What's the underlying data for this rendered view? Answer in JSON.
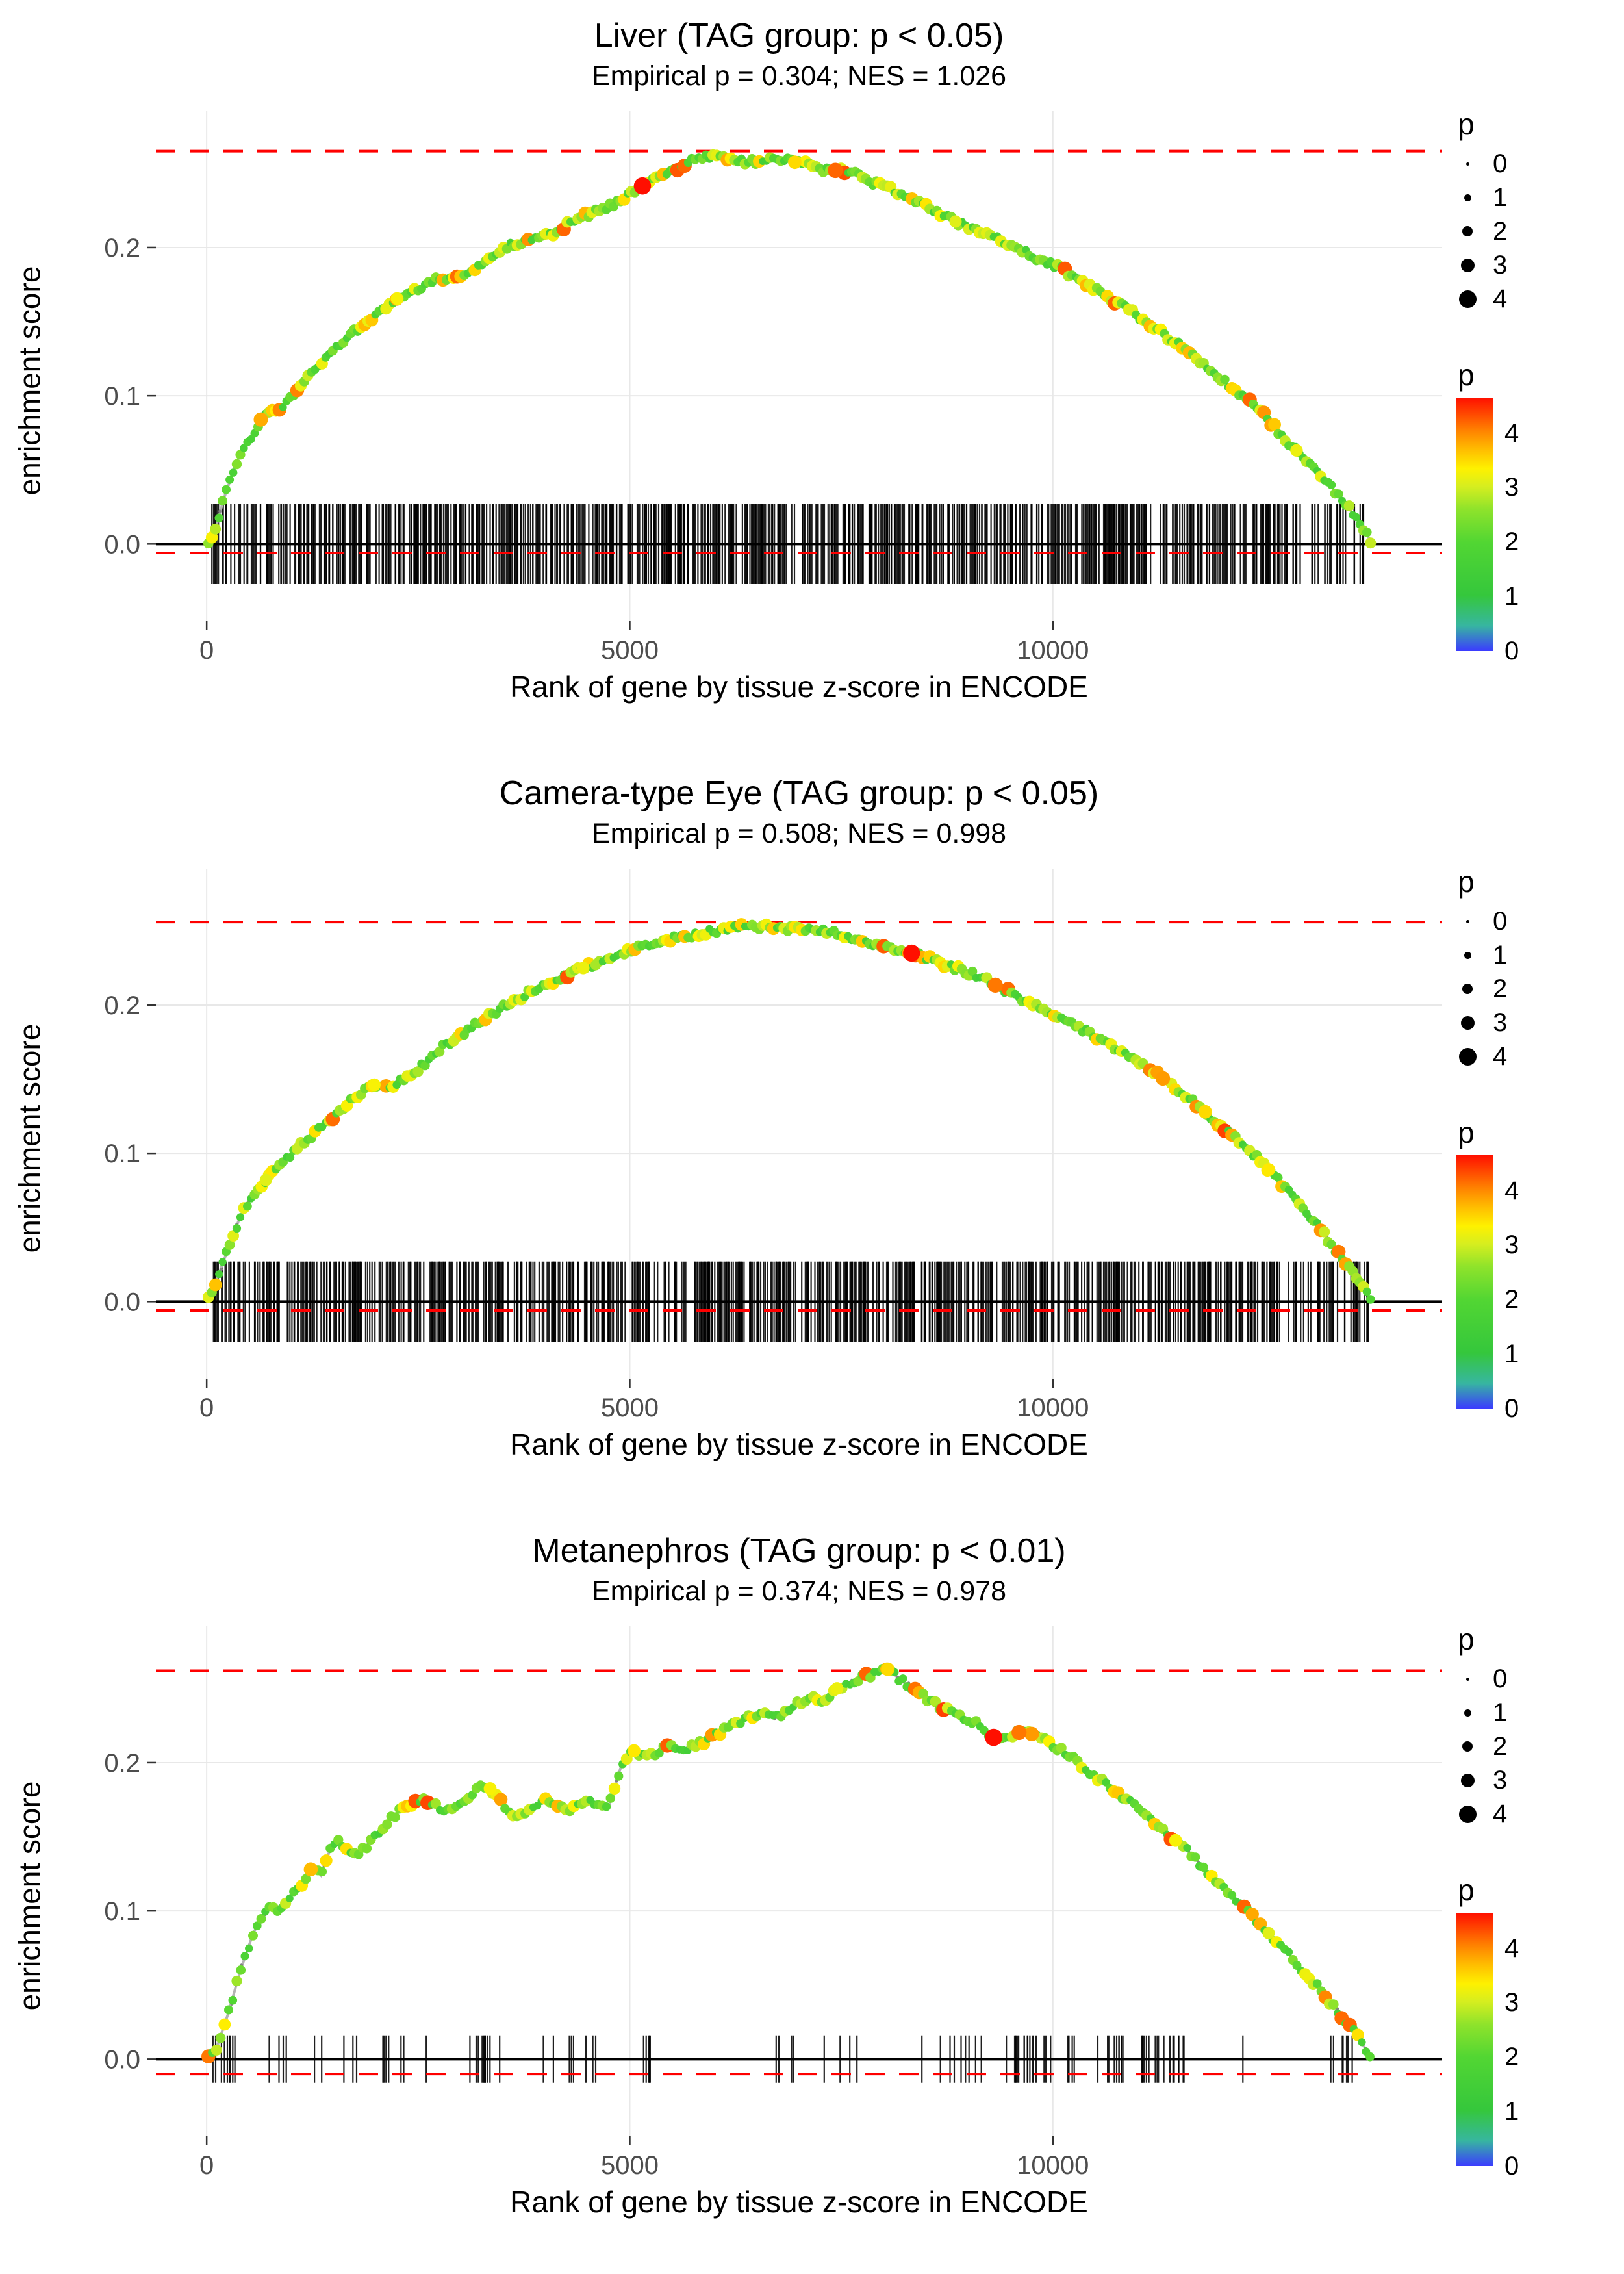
{
  "page": {
    "background": "#ffffff"
  },
  "colors": {
    "dashed_line": "#ff0000",
    "curve_line": "#b3b3b3",
    "under_dot": "#828282",
    "grid": "#e8e8e8",
    "axis_text": "#4d4d4d",
    "tick_mark": "#333333",
    "rug": "#000000",
    "zero_line": "#000000"
  },
  "legends": {
    "size": {
      "title": "p",
      "values": [
        0,
        1,
        2,
        3,
        4
      ]
    },
    "color": {
      "title": "p",
      "ticks": [
        4,
        3,
        2,
        1,
        0
      ],
      "vmax": 4.65,
      "stops": [
        [
          0.0,
          "#3b3bff"
        ],
        [
          0.1,
          "#37b6a0"
        ],
        [
          0.22,
          "#35c73c"
        ],
        [
          0.43,
          "#52d633"
        ],
        [
          0.56,
          "#8fe32b"
        ],
        [
          0.65,
          "#d6ee1f"
        ],
        [
          0.72,
          "#fef100"
        ],
        [
          0.8,
          "#ffb900"
        ],
        [
          0.88,
          "#ff7a00"
        ],
        [
          1.0,
          "#ff0f00"
        ]
      ]
    }
  },
  "chart_data": [
    {
      "type": "line",
      "title": "Liver (TAG group: p < 0.05)",
      "subtitle": "Empirical p = 0.304; NES = 1.026",
      "xlabel": "Rank of gene by tissue z-score in ENCODE",
      "ylabel": "enrichment score",
      "x_ticks": [
        0,
        5000,
        10000
      ],
      "y_ticks": [
        0.0,
        0.1,
        0.2
      ],
      "xlim": [
        -600,
        14600
      ],
      "ylim": [
        -0.052,
        0.292
      ],
      "max_es_line": 0.265,
      "zero_dash_y": -0.006,
      "curve": [
        [
          0,
          0
        ],
        [
          80,
          0.005
        ],
        [
          200,
          0.03
        ],
        [
          350,
          0.055
        ],
        [
          500,
          0.07
        ],
        [
          650,
          0.085
        ],
        [
          800,
          0.09
        ],
        [
          950,
          0.095
        ],
        [
          1100,
          0.107
        ],
        [
          1300,
          0.12
        ],
        [
          1500,
          0.13
        ],
        [
          1700,
          0.142
        ],
        [
          1900,
          0.15
        ],
        [
          2100,
          0.158
        ],
        [
          2300,
          0.168
        ],
        [
          2500,
          0.172
        ],
        [
          2700,
          0.178
        ],
        [
          2900,
          0.178
        ],
        [
          3100,
          0.183
        ],
        [
          3300,
          0.19
        ],
        [
          3500,
          0.2
        ],
        [
          3700,
          0.203
        ],
        [
          3900,
          0.206
        ],
        [
          4100,
          0.21
        ],
        [
          4300,
          0.217
        ],
        [
          4500,
          0.222
        ],
        [
          4700,
          0.226
        ],
        [
          4900,
          0.232
        ],
        [
          5100,
          0.24
        ],
        [
          5300,
          0.246
        ],
        [
          5500,
          0.252
        ],
        [
          5700,
          0.258
        ],
        [
          5900,
          0.262
        ],
        [
          6100,
          0.26
        ],
        [
          6300,
          0.258
        ],
        [
          6500,
          0.258
        ],
        [
          6700,
          0.26
        ],
        [
          6900,
          0.258
        ],
        [
          7100,
          0.256
        ],
        [
          7300,
          0.252
        ],
        [
          7500,
          0.252
        ],
        [
          7700,
          0.249
        ],
        [
          7900,
          0.243
        ],
        [
          8100,
          0.239
        ],
        [
          8300,
          0.235
        ],
        [
          8500,
          0.228
        ],
        [
          8700,
          0.222
        ],
        [
          8900,
          0.216
        ],
        [
          9100,
          0.212
        ],
        [
          9300,
          0.208
        ],
        [
          9500,
          0.202
        ],
        [
          9700,
          0.196
        ],
        [
          9900,
          0.19
        ],
        [
          10100,
          0.186
        ],
        [
          10300,
          0.178
        ],
        [
          10500,
          0.172
        ],
        [
          10700,
          0.165
        ],
        [
          10900,
          0.158
        ],
        [
          11100,
          0.15
        ],
        [
          11300,
          0.142
        ],
        [
          11500,
          0.134
        ],
        [
          11700,
          0.125
        ],
        [
          11900,
          0.115
        ],
        [
          12100,
          0.106
        ],
        [
          12300,
          0.098
        ],
        [
          12500,
          0.088
        ],
        [
          12700,
          0.073
        ],
        [
          12900,
          0.062
        ],
        [
          13100,
          0.05
        ],
        [
          13300,
          0.038
        ],
        [
          13500,
          0.024
        ],
        [
          13650,
          0.012
        ],
        [
          13780,
          0
        ]
      ],
      "highlights": [
        [
          5150,
          4.9
        ],
        [
          7430,
          4.2
        ],
        [
          640,
          3.8
        ],
        [
          2250,
          3.3
        ],
        [
          6950,
          3.5
        ],
        [
          12880,
          3.2
        ],
        [
          8850,
          3.1
        ]
      ],
      "rug": {
        "style": "dense",
        "count": 750,
        "xmin": 60,
        "xmax": 13760,
        "seed": 21,
        "half_height": 0.027
      },
      "points": {
        "spacing": 42,
        "seed": 101,
        "jitter": 0.004
      }
    },
    {
      "type": "line",
      "title": "Camera-type Eye (TAG group: p < 0.05)",
      "subtitle": "Empirical p = 0.508; NES = 0.998",
      "xlabel": "Rank of gene by tissue z-score in ENCODE",
      "ylabel": "enrichment score",
      "x_ticks": [
        0,
        5000,
        10000
      ],
      "y_ticks": [
        0.0,
        0.1,
        0.2
      ],
      "xlim": [
        -600,
        14600
      ],
      "ylim": [
        -0.052,
        0.292
      ],
      "max_es_line": 0.256,
      "zero_dash_y": -0.006,
      "curve": [
        [
          0,
          0
        ],
        [
          100,
          0.012
        ],
        [
          250,
          0.035
        ],
        [
          400,
          0.058
        ],
        [
          550,
          0.072
        ],
        [
          700,
          0.082
        ],
        [
          850,
          0.09
        ],
        [
          1000,
          0.1
        ],
        [
          1200,
          0.11
        ],
        [
          1400,
          0.12
        ],
        [
          1600,
          0.13
        ],
        [
          1800,
          0.14
        ],
        [
          1950,
          0.147
        ],
        [
          2100,
          0.143
        ],
        [
          2250,
          0.148
        ],
        [
          2400,
          0.152
        ],
        [
          2600,
          0.162
        ],
        [
          2800,
          0.172
        ],
        [
          3000,
          0.18
        ],
        [
          3200,
          0.188
        ],
        [
          3400,
          0.195
        ],
        [
          3600,
          0.202
        ],
        [
          3800,
          0.208
        ],
        [
          4000,
          0.214
        ],
        [
          4200,
          0.219
        ],
        [
          4400,
          0.224
        ],
        [
          4600,
          0.228
        ],
        [
          4800,
          0.233
        ],
        [
          5000,
          0.237
        ],
        [
          5200,
          0.24
        ],
        [
          5400,
          0.243
        ],
        [
          5600,
          0.246
        ],
        [
          5800,
          0.248
        ],
        [
          6000,
          0.25
        ],
        [
          6200,
          0.252
        ],
        [
          6400,
          0.253
        ],
        [
          6600,
          0.253
        ],
        [
          6800,
          0.252
        ],
        [
          7000,
          0.251
        ],
        [
          7200,
          0.25
        ],
        [
          7400,
          0.249
        ],
        [
          7600,
          0.246
        ],
        [
          7800,
          0.242
        ],
        [
          8000,
          0.239
        ],
        [
          8200,
          0.237
        ],
        [
          8400,
          0.234
        ],
        [
          8600,
          0.23
        ],
        [
          8800,
          0.226
        ],
        [
          9000,
          0.222
        ],
        [
          9200,
          0.217
        ],
        [
          9400,
          0.211
        ],
        [
          9600,
          0.205
        ],
        [
          9800,
          0.199
        ],
        [
          10000,
          0.194
        ],
        [
          10200,
          0.188
        ],
        [
          10400,
          0.182
        ],
        [
          10600,
          0.175
        ],
        [
          10800,
          0.168
        ],
        [
          11000,
          0.161
        ],
        [
          11200,
          0.154
        ],
        [
          11400,
          0.147
        ],
        [
          11600,
          0.138
        ],
        [
          11800,
          0.128
        ],
        [
          12000,
          0.118
        ],
        [
          12200,
          0.108
        ],
        [
          12400,
          0.098
        ],
        [
          12600,
          0.086
        ],
        [
          12800,
          0.073
        ],
        [
          13000,
          0.06
        ],
        [
          13200,
          0.046
        ],
        [
          13400,
          0.03
        ],
        [
          13600,
          0.015
        ],
        [
          13780,
          0
        ]
      ],
      "highlights": [
        [
          8330,
          4.8
        ],
        [
          9320,
          4.1
        ],
        [
          11300,
          3.9
        ],
        [
          11800,
          3.5
        ],
        [
          1980,
          3.3
        ],
        [
          4450,
          3.2
        ],
        [
          12550,
          3.4
        ],
        [
          700,
          3.1
        ]
      ],
      "rug": {
        "style": "dense",
        "count": 720,
        "xmin": 60,
        "xmax": 13760,
        "seed": 22,
        "half_height": 0.027
      },
      "points": {
        "spacing": 42,
        "seed": 102,
        "jitter": 0.004
      }
    },
    {
      "type": "line",
      "title": "Metanephros (TAG group: p < 0.01)",
      "subtitle": "Empirical p = 0.374; NES = 0.978",
      "xlabel": "Rank of gene by tissue z-score in ENCODE",
      "ylabel": "enrichment score",
      "x_ticks": [
        0,
        5000,
        10000
      ],
      "y_ticks": [
        0.0,
        0.1,
        0.2
      ],
      "xlim": [
        -600,
        14600
      ],
      "ylim": [
        -0.052,
        0.292
      ],
      "max_es_line": 0.262,
      "zero_dash_y": -0.01,
      "curve": [
        [
          0,
          0
        ],
        [
          120,
          0.008
        ],
        [
          250,
          0.03
        ],
        [
          400,
          0.06
        ],
        [
          550,
          0.085
        ],
        [
          650,
          0.095
        ],
        [
          750,
          0.102
        ],
        [
          850,
          0.098
        ],
        [
          950,
          0.108
        ],
        [
          1050,
          0.115
        ],
        [
          1150,
          0.12
        ],
        [
          1250,
          0.13
        ],
        [
          1350,
          0.124
        ],
        [
          1450,
          0.14
        ],
        [
          1550,
          0.148
        ],
        [
          1650,
          0.142
        ],
        [
          1800,
          0.138
        ],
        [
          1950,
          0.148
        ],
        [
          2100,
          0.158
        ],
        [
          2250,
          0.166
        ],
        [
          2400,
          0.172
        ],
        [
          2550,
          0.176
        ],
        [
          2700,
          0.171
        ],
        [
          2850,
          0.168
        ],
        [
          3000,
          0.174
        ],
        [
          3150,
          0.18
        ],
        [
          3300,
          0.185
        ],
        [
          3400,
          0.18
        ],
        [
          3550,
          0.168
        ],
        [
          3700,
          0.164
        ],
        [
          3850,
          0.17
        ],
        [
          4000,
          0.176
        ],
        [
          4150,
          0.172
        ],
        [
          4300,
          0.168
        ],
        [
          4450,
          0.174
        ],
        [
          4600,
          0.172
        ],
        [
          4750,
          0.17
        ],
        [
          4900,
          0.198
        ],
        [
          5050,
          0.208
        ],
        [
          5200,
          0.204
        ],
        [
          5350,
          0.208
        ],
        [
          5500,
          0.212
        ],
        [
          5650,
          0.208
        ],
        [
          5800,
          0.212
        ],
        [
          5950,
          0.216
        ],
        [
          6100,
          0.222
        ],
        [
          6250,
          0.226
        ],
        [
          6400,
          0.23
        ],
        [
          6550,
          0.234
        ],
        [
          6700,
          0.23
        ],
        [
          6850,
          0.234
        ],
        [
          7000,
          0.24
        ],
        [
          7150,
          0.244
        ],
        [
          7300,
          0.242
        ],
        [
          7450,
          0.25
        ],
        [
          7600,
          0.254
        ],
        [
          7750,
          0.258
        ],
        [
          7900,
          0.26
        ],
        [
          8050,
          0.263
        ],
        [
          8200,
          0.256
        ],
        [
          8350,
          0.25
        ],
        [
          8500,
          0.243
        ],
        [
          8650,
          0.238
        ],
        [
          8800,
          0.234
        ],
        [
          8950,
          0.23
        ],
        [
          9100,
          0.226
        ],
        [
          9250,
          0.218
        ],
        [
          9400,
          0.215
        ],
        [
          9550,
          0.22
        ],
        [
          9700,
          0.221
        ],
        [
          9850,
          0.216
        ],
        [
          10000,
          0.212
        ],
        [
          10150,
          0.207
        ],
        [
          10300,
          0.2
        ],
        [
          10450,
          0.193
        ],
        [
          10600,
          0.187
        ],
        [
          10800,
          0.178
        ],
        [
          11000,
          0.17
        ],
        [
          11200,
          0.16
        ],
        [
          11400,
          0.15
        ],
        [
          11600,
          0.14
        ],
        [
          11800,
          0.128
        ],
        [
          12000,
          0.117
        ],
        [
          12200,
          0.106
        ],
        [
          12400,
          0.094
        ],
        [
          12600,
          0.082
        ],
        [
          12800,
          0.07
        ],
        [
          13000,
          0.057
        ],
        [
          13200,
          0.044
        ],
        [
          13400,
          0.03
        ],
        [
          13600,
          0.015
        ],
        [
          13780,
          0
        ]
      ],
      "highlights": [
        [
          9300,
          4.9
        ],
        [
          9600,
          4.1
        ],
        [
          9750,
          3.9
        ],
        [
          8050,
          3.5
        ],
        [
          1230,
          3.7
        ],
        [
          3350,
          3.3
        ],
        [
          5050,
          3.4
        ],
        [
          7450,
          3.2
        ],
        [
          11450,
          3.3
        ],
        [
          12550,
          3.1
        ]
      ],
      "rug": {
        "style": "clustered",
        "count": 170,
        "clusters": 26,
        "spread": 260,
        "xmin": 60,
        "xmax": 13700,
        "seed": 23,
        "half_height": 0.016
      },
      "points": {
        "spacing": 48,
        "seed": 103,
        "jitter": 0.004
      }
    }
  ]
}
